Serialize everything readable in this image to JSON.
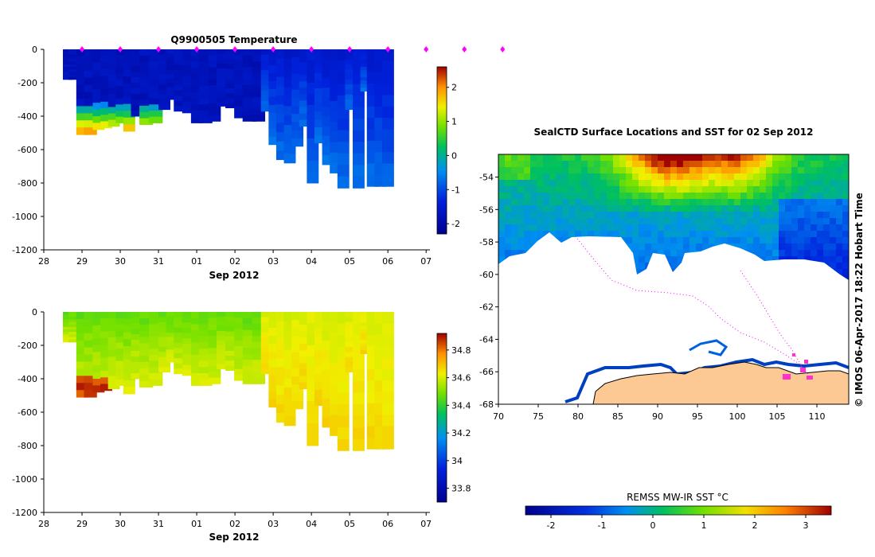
{
  "chart_data": [
    {
      "type": "heatmap",
      "title": "Q9900505  Temperature",
      "xlabel": "Sep 2012",
      "ylabel": "",
      "x_tick_labels": [
        "28",
        "29",
        "30",
        "31",
        "01",
        "02",
        "03",
        "04",
        "05",
        "06",
        "07"
      ],
      "y_tick_labels": [
        "0",
        "-200",
        "-400",
        "-600",
        "-800",
        "-1000",
        "-1200"
      ],
      "ylim": [
        -1200,
        0
      ],
      "colorbar_tick_labels": [
        "-2",
        "-1",
        "0",
        "1",
        "2"
      ],
      "colorbar_range": [
        -2.3,
        2.6
      ],
      "profile_days": [
        28.5,
        28.75,
        28.95,
        29.15,
        29.38,
        29.58,
        29.78,
        29.98,
        30.18,
        30.38,
        30.6,
        30.85,
        31.1,
        31.3,
        31.5,
        31.72,
        31.95,
        32.15,
        32.4,
        32.62,
        32.85,
        33.08,
        33.3,
        33.55,
        33.78,
        33.98,
        34.18,
        34.38,
        34.58,
        34.78,
        34.98,
        35.18,
        35.38,
        35.58,
        35.78,
        35.98,
        36.18,
        36.38,
        36.55,
        36.75,
        36.95
      ],
      "profile_max_depth": [
        -180,
        -180,
        -510,
        -510,
        -480,
        -470,
        -460,
        -440,
        -490,
        -400,
        -450,
        -440,
        -360,
        -300,
        -370,
        -380,
        -440,
        -440,
        -430,
        -340,
        -350,
        -410,
        -430,
        -430,
        -370,
        -570,
        -660,
        -680,
        -580,
        -460,
        -800,
        -560,
        -690,
        -740,
        -830,
        -360,
        -830,
        -250,
        -820,
        -820,
        -820
      ],
      "surface_markers_days": [
        29,
        30,
        31,
        32,
        33,
        34,
        35,
        36,
        37,
        38,
        39,
        40
      ]
    },
    {
      "type": "heatmap",
      "title": "",
      "xlabel": "Sep 2012",
      "ylabel": "",
      "x_tick_labels": [
        "28",
        "29",
        "30",
        "31",
        "01",
        "02",
        "03",
        "04",
        "05",
        "06",
        "07"
      ],
      "y_tick_labels": [
        "0",
        "-200",
        "-400",
        "-600",
        "-800",
        "-1000",
        "-1200"
      ],
      "ylim": [
        -1200,
        0
      ],
      "colorbar_tick_labels": [
        "33.8",
        "34",
        "34.2",
        "34.4",
        "34.6",
        "34.8"
      ],
      "colorbar_range": [
        33.7,
        34.92
      ]
    },
    {
      "type": "heatmap",
      "title": "SealCTD Surface Locations and SST for 02 Sep 2012",
      "xlabel": "",
      "ylabel": "",
      "x_tick_labels": [
        "70",
        "75",
        "80",
        "85",
        "90",
        "95",
        "100",
        "105",
        "110"
      ],
      "y_tick_labels": [
        "-54",
        "-56",
        "-58",
        "-60",
        "-62",
        "-64",
        "-66",
        "-68"
      ],
      "xlim": [
        70,
        114
      ],
      "ylim": [
        -68,
        -52.6
      ],
      "colorbar_label": "REMSS MW-IR SST °C",
      "colorbar_tick_labels": [
        "-2",
        "-1",
        "0",
        "1",
        "2",
        "3"
      ],
      "colorbar_range": [
        -2.5,
        3.5
      ],
      "credit": "© IMOS 06-Apr-2017 18:22 Hobart Time"
    }
  ]
}
